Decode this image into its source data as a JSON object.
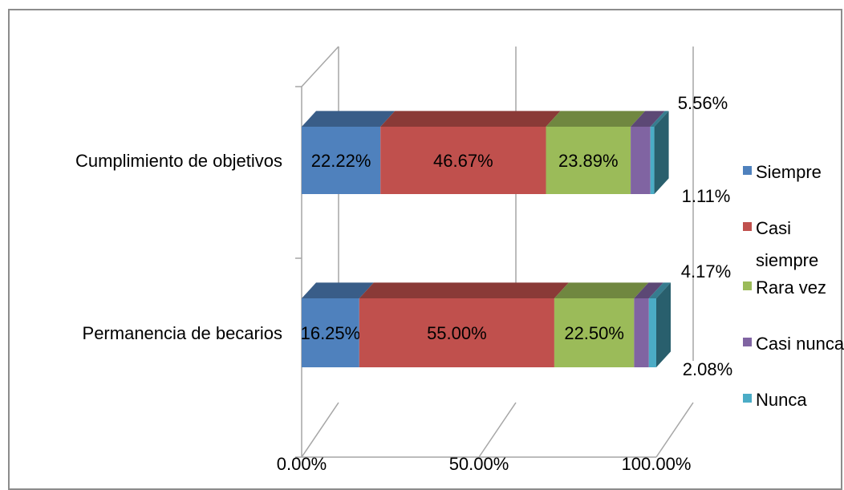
{
  "chart_data": {
    "type": "bar",
    "orientation": "horizontal",
    "stacked": "100%",
    "three_d": true,
    "categories": [
      "Cumplimiento de objetivos",
      "Permanencia de becarios"
    ],
    "series": [
      {
        "name": "Siempre",
        "color": "#4f81bd",
        "values": [
          22.22,
          16.25
        ],
        "labels": [
          "22.22%",
          "16.25%"
        ]
      },
      {
        "name": "Casi siempre",
        "color": "#c0504d",
        "values": [
          46.67,
          55.0
        ],
        "labels": [
          "46.67%",
          "55.00%"
        ]
      },
      {
        "name": "Rara vez",
        "color": "#9bbb59",
        "values": [
          23.89,
          22.5
        ],
        "labels": [
          "23.89%",
          "22.50%"
        ]
      },
      {
        "name": "Casi nunca",
        "color": "#8064a2",
        "values": [
          5.56,
          4.17
        ],
        "labels": [
          "5.56%",
          "4.17%"
        ]
      },
      {
        "name": "Nunca",
        "color": "#4bacc6",
        "values": [
          1.11,
          2.08
        ],
        "labels": [
          "1.11%",
          "2.08%"
        ]
      }
    ],
    "xaxis_ticks": [
      "0.00%",
      "50.00%",
      "100.00%"
    ],
    "xlim": [
      0,
      100
    ],
    "grid": true,
    "legend_position": "right"
  }
}
